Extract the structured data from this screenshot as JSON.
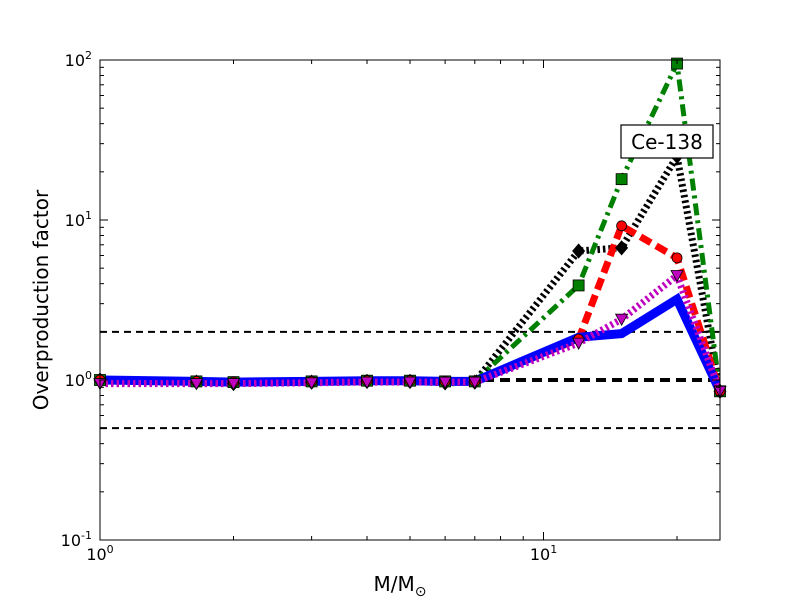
{
  "chart_data": {
    "type": "line",
    "xlabel_main": "M/M",
    "xlabel_sub": "⊙",
    "ylabel": "Overproduction factor",
    "xscale": "log",
    "yscale": "log",
    "xlim": [
      1,
      25
    ],
    "ylim": [
      0.1,
      100
    ],
    "x_ticks": [
      {
        "value": 1,
        "base": "10",
        "exp": "0"
      },
      {
        "value": 10,
        "base": "10",
        "exp": "1"
      }
    ],
    "y_ticks": [
      {
        "value": 0.1,
        "base": "10",
        "exp": "-1"
      },
      {
        "value": 1,
        "base": "10",
        "exp": "0"
      },
      {
        "value": 10,
        "base": "10",
        "exp": "1"
      },
      {
        "value": 100,
        "base": "10",
        "exp": "2"
      }
    ],
    "annotation": "Ce-138",
    "reference_lines": [
      {
        "y": 2.0,
        "style": "dashed",
        "color": "#000000"
      },
      {
        "y": 1.0,
        "style": "dashed-thick",
        "color": "#000000"
      },
      {
        "y": 0.5,
        "style": "dashed",
        "color": "#000000"
      }
    ],
    "series": [
      {
        "style": "dotted",
        "color": "#000000",
        "marker": "diamond",
        "x": [
          1,
          1.65,
          2,
          3,
          4,
          5,
          6,
          7,
          12,
          15,
          20,
          25
        ],
        "y": [
          1.0,
          0.97,
          0.95,
          0.97,
          0.98,
          0.98,
          0.96,
          0.97,
          6.4,
          6.7,
          25,
          0.85
        ]
      },
      {
        "style": "dashdot",
        "color": "#008000",
        "marker": "square",
        "x": [
          1,
          1.65,
          2,
          3,
          4,
          5,
          6,
          7,
          12,
          15,
          20,
          25
        ],
        "y": [
          1.0,
          0.98,
          0.97,
          0.98,
          0.99,
          0.99,
          0.98,
          0.98,
          3.9,
          18,
          95,
          0.85
        ]
      },
      {
        "style": "dashed",
        "color": "#ff0000",
        "marker": "circle",
        "x": [
          1,
          1.65,
          2,
          3,
          4,
          5,
          6,
          7,
          12,
          15,
          20,
          25
        ],
        "y": [
          1.0,
          0.98,
          0.97,
          0.98,
          0.99,
          0.99,
          0.98,
          0.98,
          1.8,
          9.2,
          5.8,
          0.85
        ]
      },
      {
        "style": "solid",
        "color": "#0000ff",
        "marker": "none",
        "x": [
          1,
          1.65,
          2,
          3,
          4,
          5,
          6,
          7,
          12,
          15,
          20,
          25
        ],
        "y": [
          1.0,
          0.98,
          0.97,
          0.98,
          0.99,
          0.99,
          0.98,
          0.98,
          1.85,
          1.95,
          3.2,
          0.85
        ]
      },
      {
        "style": "dotted",
        "color": "#bf00bf",
        "marker": "triangle-down",
        "x": [
          1,
          1.65,
          2,
          3,
          4,
          5,
          6,
          7,
          12,
          15,
          20,
          25
        ],
        "y": [
          0.95,
          0.95,
          0.95,
          0.96,
          0.97,
          0.97,
          0.97,
          0.97,
          1.7,
          2.4,
          4.5,
          0.85
        ]
      }
    ]
  }
}
